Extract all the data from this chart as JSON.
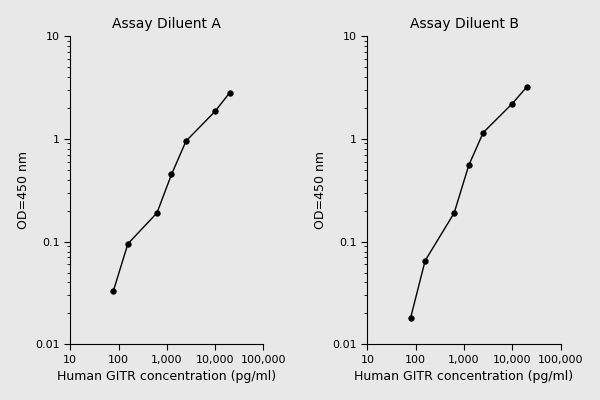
{
  "panel_A": {
    "title": "Assay Diluent A",
    "x": [
      78,
      156,
      625,
      1250,
      2500,
      10000,
      20000
    ],
    "y": [
      0.033,
      0.095,
      0.19,
      0.45,
      0.95,
      1.85,
      2.8
    ]
  },
  "panel_B": {
    "title": "Assay Diluent B",
    "x": [
      78,
      156,
      625,
      1250,
      2500,
      10000,
      20000
    ],
    "y": [
      0.018,
      0.065,
      0.19,
      0.55,
      1.15,
      2.2,
      3.2
    ]
  },
  "xlabel": "Human GITR concentration (pg/ml)",
  "ylabel": "OD=450 nm",
  "xlim": [
    10,
    100000
  ],
  "ylim": [
    0.01,
    10
  ],
  "xticks": [
    10,
    100,
    1000,
    10000,
    100000
  ],
  "xtick_labels": [
    "10",
    "100",
    "1,000",
    "10,000",
    "100,000"
  ],
  "yticks": [
    0.01,
    0.1,
    1,
    10
  ],
  "ytick_labels": [
    "0.01",
    "0.1",
    "1",
    "10"
  ],
  "line_color": "#000000",
  "marker": "o",
  "markersize": 4,
  "linewidth": 1.0,
  "bg_color": "#e8e8e8",
  "title_fontsize": 10,
  "label_fontsize": 9,
  "tick_fontsize": 8
}
